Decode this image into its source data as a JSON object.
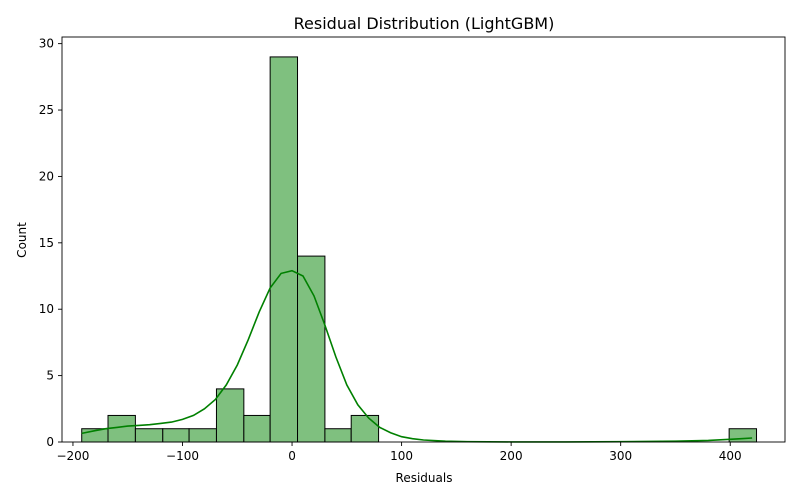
{
  "chart_data": {
    "type": "histogram",
    "title": "Residual Distribution (LightGBM)",
    "xlabel": "Residuals",
    "ylabel": "Count",
    "xlim": [
      -210,
      450
    ],
    "ylim": [
      0,
      30.5
    ],
    "xticks": [
      -200,
      -100,
      0,
      100,
      200,
      300,
      400
    ],
    "xtick_labels": [
      "−200",
      "−100",
      "0",
      "100",
      "200",
      "300",
      "400"
    ],
    "yticks": [
      0,
      5,
      10,
      15,
      20,
      25,
      30
    ],
    "ytick_labels": [
      "0",
      "5",
      "10",
      "15",
      "20",
      "25",
      "30"
    ],
    "grid": false,
    "bins": [
      {
        "x0": -192,
        "x1": -168,
        "count": 1
      },
      {
        "x0": -168,
        "x1": -143,
        "count": 2
      },
      {
        "x0": -143,
        "x1": -118,
        "count": 1
      },
      {
        "x0": -118,
        "x1": -94,
        "count": 1
      },
      {
        "x0": -94,
        "x1": -69,
        "count": 1
      },
      {
        "x0": -69,
        "x1": -44,
        "count": 4
      },
      {
        "x0": -44,
        "x1": -20,
        "count": 2
      },
      {
        "x0": -20,
        "x1": 5,
        "count": 29
      },
      {
        "x0": 5,
        "x1": 30,
        "count": 14
      },
      {
        "x0": 30,
        "x1": 54,
        "count": 1
      },
      {
        "x0": 54,
        "x1": 79,
        "count": 2
      },
      {
        "x0": 399,
        "x1": 424,
        "count": 1
      }
    ],
    "kde": {
      "x": [
        -192,
        -180,
        -170,
        -160,
        -150,
        -140,
        -130,
        -120,
        -110,
        -100,
        -90,
        -80,
        -70,
        -60,
        -50,
        -40,
        -30,
        -20,
        -10,
        0,
        10,
        20,
        30,
        40,
        50,
        60,
        70,
        80,
        90,
        100,
        110,
        120,
        140,
        160,
        200,
        250,
        300,
        350,
        380,
        400,
        410,
        420
      ],
      "y": [
        0.65,
        0.85,
        1.0,
        1.1,
        1.2,
        1.25,
        1.3,
        1.4,
        1.5,
        1.7,
        2.0,
        2.5,
        3.2,
        4.3,
        5.8,
        7.7,
        9.8,
        11.6,
        12.7,
        12.9,
        12.5,
        11.0,
        8.8,
        6.4,
        4.3,
        2.8,
        1.8,
        1.1,
        0.7,
        0.4,
        0.25,
        0.15,
        0.06,
        0.02,
        0.01,
        0.01,
        0.02,
        0.06,
        0.12,
        0.2,
        0.25,
        0.3
      ]
    },
    "bar_fill": "#7fc07f",
    "bar_edge": "#000000",
    "kde_color": "#008000"
  }
}
